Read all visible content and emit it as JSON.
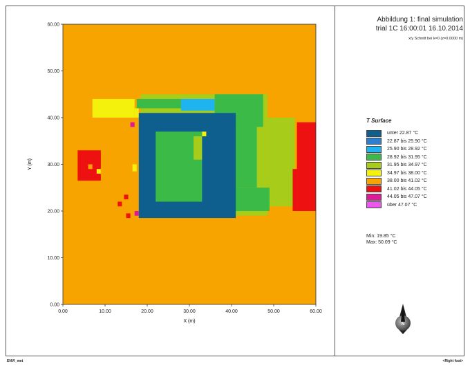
{
  "chart_data": {
    "type": "heatmap",
    "title": "Abbildung 1: final simulation",
    "subtitle": "trial 1C 16:00:01 16.10.2014",
    "caption": "x/y Schnitt bei k=0 (z=0.0000 m)",
    "xlabel": "X (m)",
    "ylabel": "Y (m)",
    "xlim": [
      0,
      60
    ],
    "ylim": [
      0,
      60
    ],
    "x_ticks": [
      "0.00",
      "10.00",
      "20.00",
      "30.00",
      "40.00",
      "50.00",
      "60.00"
    ],
    "y_ticks": [
      "0.00",
      "10.00",
      "20.00",
      "30.00",
      "40.00",
      "50.00",
      "60.00"
    ],
    "grid": false,
    "legend_title": "T Surface",
    "legend_position": "right",
    "classes": [
      {
        "label": "unter 22.87 °C",
        "color": "#0e5f8e"
      },
      {
        "label": "22.87 bis 25.90 °C",
        "color": "#2f7fd0"
      },
      {
        "label": "25.90 bis 28.92 °C",
        "color": "#1fb4f0"
      },
      {
        "label": "28.92 bis 31.95 °C",
        "color": "#3cba48"
      },
      {
        "label": "31.95 bis 34.97 °C",
        "color": "#a8cc1a"
      },
      {
        "label": "34.97 bis 38.00 °C",
        "color": "#f4f10c"
      },
      {
        "label": "38.00 bis 41.02 °C",
        "color": "#f7a400"
      },
      {
        "label": "41.02 bis 44.05 °C",
        "color": "#ee1111"
      },
      {
        "label": "44.05 bis 47.07 °C",
        "color": "#e0189a"
      },
      {
        "label": "über 47.07 °C",
        "color": "#ec58ec"
      }
    ],
    "background_class": 6,
    "regions": [
      {
        "class": 4,
        "x": [
          18.5,
          48.5
        ],
        "y": [
          19,
          45
        ]
      },
      {
        "class": 4,
        "x": [
          48.5,
          55
        ],
        "y": [
          21,
          40
        ]
      },
      {
        "class": 5,
        "x": [
          7,
          17
        ],
        "y": [
          40,
          44
        ]
      },
      {
        "class": 5,
        "x": [
          17,
          18
        ],
        "y": [
          40,
          42
        ]
      },
      {
        "class": 3,
        "x": [
          17.5,
          30
        ],
        "y": [
          42,
          44
        ]
      },
      {
        "class": 2,
        "x": [
          28,
          36
        ],
        "y": [
          41.5,
          44
        ]
      },
      {
        "class": 3,
        "x": [
          36,
          47.5
        ],
        "y": [
          38,
          45
        ]
      },
      {
        "class": 3,
        "x": [
          41,
          46
        ],
        "y": [
          25,
          38
        ]
      },
      {
        "class": 3,
        "x": [
          40.5,
          49
        ],
        "y": [
          20,
          25
        ]
      },
      {
        "class": 0,
        "x": [
          18,
          41
        ],
        "y": [
          18.5,
          41
        ]
      },
      {
        "class": 3,
        "x": [
          22,
          33
        ],
        "y": [
          22,
          37
        ]
      },
      {
        "class": 4,
        "x": [
          31,
          33
        ],
        "y": [
          31,
          36
        ]
      },
      {
        "class": 5,
        "x": [
          33,
          34
        ],
        "y": [
          36,
          37
        ]
      },
      {
        "class": 7,
        "x": [
          55.5,
          60
        ],
        "y": [
          20,
          39
        ]
      },
      {
        "class": 7,
        "x": [
          54.5,
          55.5
        ],
        "y": [
          20,
          29
        ]
      },
      {
        "class": 7,
        "x": [
          3.5,
          9
        ],
        "y": [
          26.5,
          33
        ]
      },
      {
        "class": 6,
        "x": [
          6,
          7
        ],
        "y": [
          29,
          30
        ]
      },
      {
        "class": 5,
        "x": [
          8,
          9
        ],
        "y": [
          28,
          29
        ]
      },
      {
        "class": 7,
        "x": [
          13,
          14
        ],
        "y": [
          21,
          22
        ]
      },
      {
        "class": 7,
        "x": [
          14.5,
          15.5
        ],
        "y": [
          22.5,
          23.5
        ]
      },
      {
        "class": 7,
        "x": [
          15,
          16
        ],
        "y": [
          18.5,
          19.5
        ]
      },
      {
        "class": 8,
        "x": [
          16,
          17
        ],
        "y": [
          38,
          39
        ]
      },
      {
        "class": 8,
        "x": [
          17,
          18
        ],
        "y": [
          19,
          20
        ]
      },
      {
        "class": 5,
        "x": [
          16.5,
          17.5
        ],
        "y": [
          28.5,
          30
        ]
      }
    ]
  },
  "stats": {
    "min": "Min: 19.85 °C",
    "max": "Max: 50.09 °C"
  },
  "footer": {
    "left": "ENVI_met",
    "right": "<Right foot>"
  },
  "compass_label": "N"
}
